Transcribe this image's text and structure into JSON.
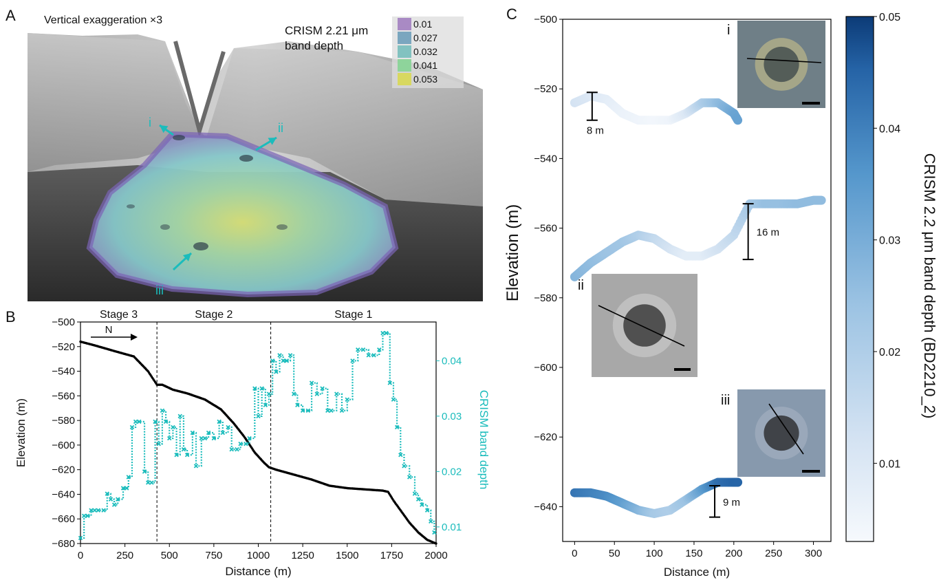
{
  "panel_a": {
    "letter": "A",
    "annotation": "Vertical exaggeration ×3",
    "legend_title_1": "CRISM 2.21 μm",
    "legend_title_2": "band depth",
    "legend": [
      {
        "label": "0.01",
        "color": "#a98ac4"
      },
      {
        "label": "0.027",
        "color": "#7aa6bf"
      },
      {
        "label": "0.032",
        "color": "#82c2c0"
      },
      {
        "label": "0.041",
        "color": "#8ed49b"
      },
      {
        "label": "0.053",
        "color": "#d8d860"
      }
    ],
    "arrow_labels": [
      "i",
      "ii",
      "iii"
    ],
    "arrow_color": "#1bbcbc"
  },
  "chart_data": [
    {
      "panel": "B",
      "type": "line",
      "title": "",
      "xlabel": "Distance (m)",
      "ylabel": "Elevation (m)",
      "y2label": "CRISM  band depth",
      "xlim": [
        0,
        2000
      ],
      "ylim": [
        -680,
        -500
      ],
      "y2lim": [
        0.007,
        0.047
      ],
      "xticks": [
        "0",
        "250",
        "500",
        "750",
        "1000",
        "1250",
        "1500",
        "1750",
        "2000"
      ],
      "yticks": [
        "-500",
        "-520",
        "-540",
        "-560",
        "-580",
        "-600",
        "-620",
        "-640",
        "-660",
        "-680"
      ],
      "y2ticks": [
        "0.01",
        "0.02",
        "0.03",
        "0.04"
      ],
      "stage_labels": [
        "Stage 3",
        "Stage 2",
        "Stage 1"
      ],
      "stage_boundaries": [
        430,
        1070
      ],
      "north_label": "N",
      "series": [
        {
          "color": "#000000",
          "axis": "left",
          "x": [
            0,
            80,
            200,
            300,
            380,
            430,
            460,
            520,
            600,
            700,
            790,
            860,
            920,
            980,
            1030,
            1060,
            1100,
            1200,
            1300,
            1400,
            1500,
            1600,
            1700,
            1730,
            1760,
            1800,
            1850,
            1900,
            1950,
            2000
          ],
          "y": [
            -516,
            -519,
            -524,
            -528,
            -540,
            -551,
            -551,
            -555,
            -558,
            -563,
            -571,
            -582,
            -593,
            -606,
            -614,
            -618,
            -620,
            -624,
            -628,
            -633,
            -635,
            -636,
            -637,
            -638,
            -645,
            -653,
            -663,
            -671,
            -677,
            -680
          ]
        },
        {
          "color": "#1bbcbc",
          "axis": "right",
          "x": [
            0,
            20,
            40,
            60,
            80,
            100,
            130,
            150,
            170,
            190,
            210,
            240,
            260,
            270,
            290,
            310,
            330,
            360,
            380,
            400,
            420,
            440,
            460,
            480,
            500,
            520,
            540,
            560,
            580,
            600,
            630,
            650,
            680,
            700,
            720,
            750,
            780,
            800,
            830,
            850,
            880,
            900,
            930,
            950,
            980,
            1000,
            1020,
            1040,
            1060,
            1080,
            1100,
            1120,
            1140,
            1160,
            1180,
            1200,
            1220,
            1250,
            1280,
            1300,
            1330,
            1360,
            1390,
            1410,
            1440,
            1470,
            1500,
            1530,
            1560,
            1590,
            1620,
            1650,
            1680,
            1700,
            1720,
            1740,
            1760,
            1780,
            1800,
            1820,
            1850,
            1880,
            1900,
            1920,
            1950,
            1970,
            1990
          ],
          "y": [
            0.008,
            0.012,
            0.012,
            0.013,
            0.013,
            0.013,
            0.013,
            0.016,
            0.015,
            0.014,
            0.015,
            0.017,
            0.017,
            0.019,
            0.028,
            0.029,
            0.029,
            0.02,
            0.018,
            0.018,
            0.029,
            0.025,
            0.031,
            0.029,
            0.026,
            0.028,
            0.023,
            0.03,
            0.024,
            0.023,
            0.027,
            0.021,
            0.026,
            0.026,
            0.027,
            0.026,
            0.029,
            0.027,
            0.028,
            0.024,
            0.024,
            0.025,
            0.025,
            0.026,
            0.035,
            0.03,
            0.035,
            0.032,
            0.034,
            0.04,
            0.038,
            0.041,
            0.04,
            0.04,
            0.041,
            0.034,
            0.032,
            0.031,
            0.031,
            0.036,
            0.034,
            0.035,
            0.031,
            0.031,
            0.034,
            0.031,
            0.033,
            0.04,
            0.042,
            0.042,
            0.041,
            0.041,
            0.042,
            0.045,
            0.045,
            0.036,
            0.033,
            0.028,
            0.023,
            0.021,
            0.019,
            0.016,
            0.015,
            0.014,
            0.013,
            0.011,
            0.009
          ]
        }
      ]
    },
    {
      "panel": "C",
      "type": "scatter",
      "title": "",
      "xlabel": "Distance (m)",
      "ylabel": "Elevation (m)",
      "xlim": [
        -15,
        322
      ],
      "ylim": [
        -650,
        -500
      ],
      "xticks": [
        "0",
        "50",
        "100",
        "150",
        "200",
        "250",
        "300"
      ],
      "yticks": [
        "-500",
        "-520",
        "-540",
        "-560",
        "-580",
        "-600",
        "-620",
        "-640"
      ],
      "colorbar": {
        "label": "CRISM 2.2 μm band depth (BD2210_2)",
        "min": 0.003,
        "max": 0.05,
        "ticks": [
          "0.05",
          "0.04",
          "0.03",
          "0.02",
          "0.01"
        ]
      },
      "series": [
        {
          "name": "i",
          "points": [
            [
              0,
              -524,
              0.012
            ],
            [
              20,
              -522,
              0.01
            ],
            [
              40,
              -523,
              0.008
            ],
            [
              60,
              -527,
              0.006
            ],
            [
              80,
              -529,
              0.005
            ],
            [
              100,
              -529,
              0.004
            ],
            [
              120,
              -529,
              0.005
            ],
            [
              140,
              -527,
              0.01
            ],
            [
              160,
              -524,
              0.02
            ],
            [
              180,
              -524,
              0.026
            ],
            [
              200,
              -527,
              0.032
            ],
            [
              205,
              -529,
              0.033
            ]
          ],
          "scale_bar": {
            "label": "8 m",
            "x": 22,
            "y_top": -521,
            "y_bottom": -529
          }
        },
        {
          "name": "ii",
          "points": [
            [
              0,
              -574,
              0.028
            ],
            [
              20,
              -570,
              0.026
            ],
            [
              40,
              -567,
              0.024
            ],
            [
              60,
              -564,
              0.023
            ],
            [
              80,
              -562,
              0.02
            ],
            [
              100,
              -563,
              0.016
            ],
            [
              120,
              -566,
              0.012
            ],
            [
              140,
              -568,
              0.008
            ],
            [
              160,
              -568,
              0.008
            ],
            [
              180,
              -566,
              0.012
            ],
            [
              200,
              -562,
              0.016
            ],
            [
              220,
              -553,
              0.022
            ],
            [
              240,
              -553,
              0.025
            ],
            [
              260,
              -553,
              0.025
            ],
            [
              280,
              -553,
              0.026
            ],
            [
              300,
              -552,
              0.026
            ],
            [
              310,
              -552,
              0.026
            ]
          ],
          "scale_bar": {
            "label": "16 m",
            "x": 218,
            "y_top": -553,
            "y_bottom": -569
          }
        },
        {
          "name": "iii",
          "points": [
            [
              0,
              -636,
              0.042
            ],
            [
              20,
              -636,
              0.04
            ],
            [
              40,
              -637,
              0.038
            ],
            [
              60,
              -639,
              0.034
            ],
            [
              80,
              -641,
              0.028
            ],
            [
              100,
              -642,
              0.022
            ],
            [
              120,
              -641,
              0.02
            ],
            [
              140,
              -638,
              0.024
            ],
            [
              160,
              -635,
              0.034
            ],
            [
              180,
              -633,
              0.043
            ],
            [
              200,
              -633,
              0.045
            ],
            [
              205,
              -633,
              0.045
            ]
          ],
          "scale_bar": {
            "label": "9 m",
            "x": 176,
            "y_top": -634,
            "y_bottom": -643
          }
        }
      ],
      "insets": [
        "i",
        "ii",
        "iii"
      ]
    }
  ],
  "panel_letters": {
    "b": "B",
    "c": "C"
  }
}
